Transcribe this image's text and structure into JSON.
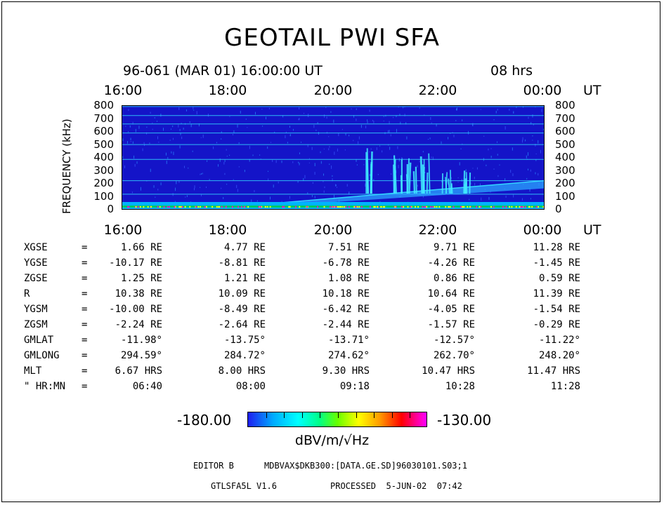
{
  "title": "GEOTAIL PWI SFA",
  "header": {
    "date_line": "96-061 (MAR 01) 16:00:00 UT",
    "duration": "08 hrs"
  },
  "time_axis": {
    "ticks": [
      "16:00",
      "18:00",
      "20:00",
      "22:00",
      "00:00"
    ],
    "unit": "UT"
  },
  "freq_axis": {
    "label": "FREQUENCY (kHz)",
    "ticks": [
      "800",
      "700",
      "600",
      "500",
      "400",
      "300",
      "200",
      "100",
      "0"
    ]
  },
  "ephemeris": [
    {
      "name": "XGSE",
      "eq": "=",
      "values": [
        "1.66 RE",
        "4.77 RE",
        "7.51 RE",
        "9.71 RE",
        "11.28 RE"
      ]
    },
    {
      "name": "YGSE",
      "eq": "=",
      "values": [
        "-10.17 RE",
        "-8.81 RE",
        "-6.78 RE",
        "-4.26 RE",
        "-1.45 RE"
      ]
    },
    {
      "name": "ZGSE",
      "eq": "=",
      "values": [
        "1.25 RE",
        "1.21 RE",
        "1.08 RE",
        "0.86 RE",
        "0.59 RE"
      ]
    },
    {
      "name": "R",
      "eq": "=",
      "values": [
        "10.38 RE",
        "10.09 RE",
        "10.18 RE",
        "10.64 RE",
        "11.39 RE"
      ]
    },
    {
      "name": "YGSM",
      "eq": "=",
      "values": [
        "-10.00 RE",
        "-8.49 RE",
        "-6.42 RE",
        "-4.05 RE",
        "-1.54 RE"
      ]
    },
    {
      "name": "ZGSM",
      "eq": "=",
      "values": [
        "-2.24 RE",
        "-2.64 RE",
        "-2.44 RE",
        "-1.57 RE",
        "-0.29 RE"
      ]
    },
    {
      "name": "GMLAT",
      "eq": "=",
      "values": [
        "-11.98°",
        "-13.75°",
        "-13.71°",
        "-12.57°",
        "-11.22°"
      ]
    },
    {
      "name": "GMLONG",
      "eq": "=",
      "values": [
        "294.59°",
        "284.72°",
        "274.62°",
        "262.70°",
        "248.20°"
      ]
    },
    {
      "name": "MLT",
      "eq": "=",
      "values": [
        "6.67 HRS",
        "8.00 HRS",
        "9.30 HRS",
        "10.47 HRS",
        "11.47 HRS"
      ]
    },
    {
      "name": "\" HR:MN",
      "eq": "=",
      "values": [
        "06:40",
        "08:00",
        "09:18",
        "10:28",
        "11:28"
      ]
    }
  ],
  "colorbar": {
    "min": "-180.00",
    "max": "-130.00",
    "unit": "dBV/m/√Hz"
  },
  "footer": {
    "editor": "EDITOR B",
    "file": "MDBVAX$DKB300:[DATA.GE.SD]96030101.S03;1",
    "program": "GTLSFA5L V1.6",
    "processed": "PROCESSED  5-JUN-02  07:42"
  },
  "colors": {
    "background_blue": "#1414c8",
    "line_cyan": "#33d6ff",
    "noise_green": "#00c864",
    "noise_magenta": "#ff00c8"
  },
  "chart_data": {
    "type": "heatmap",
    "x_range": [
      "16:00",
      "00:00"
    ],
    "y_range": [
      0,
      800
    ],
    "xlabel": "UT",
    "ylabel": "FREQUENCY (kHz)",
    "value_range": [
      -180.0,
      -130.0
    ],
    "value_unit": "dBV/m/√Hz",
    "horizontal_lines_khz": [
      795,
      725,
      660,
      590,
      500,
      385,
      220,
      115
    ],
    "rising_emission_band": {
      "start_time": "18:45",
      "end_time": "00:00",
      "start_khz": 40,
      "end_khz": 220
    },
    "bursts": [
      {
        "time": "20:40",
        "top_khz": 480
      },
      {
        "time": "21:15",
        "top_khz": 430
      },
      {
        "time": "21:30",
        "top_khz": 450
      },
      {
        "time": "21:45",
        "top_khz": 460
      },
      {
        "time": "22:10",
        "top_khz": 330
      },
      {
        "time": "22:30",
        "top_khz": 320
      }
    ]
  }
}
